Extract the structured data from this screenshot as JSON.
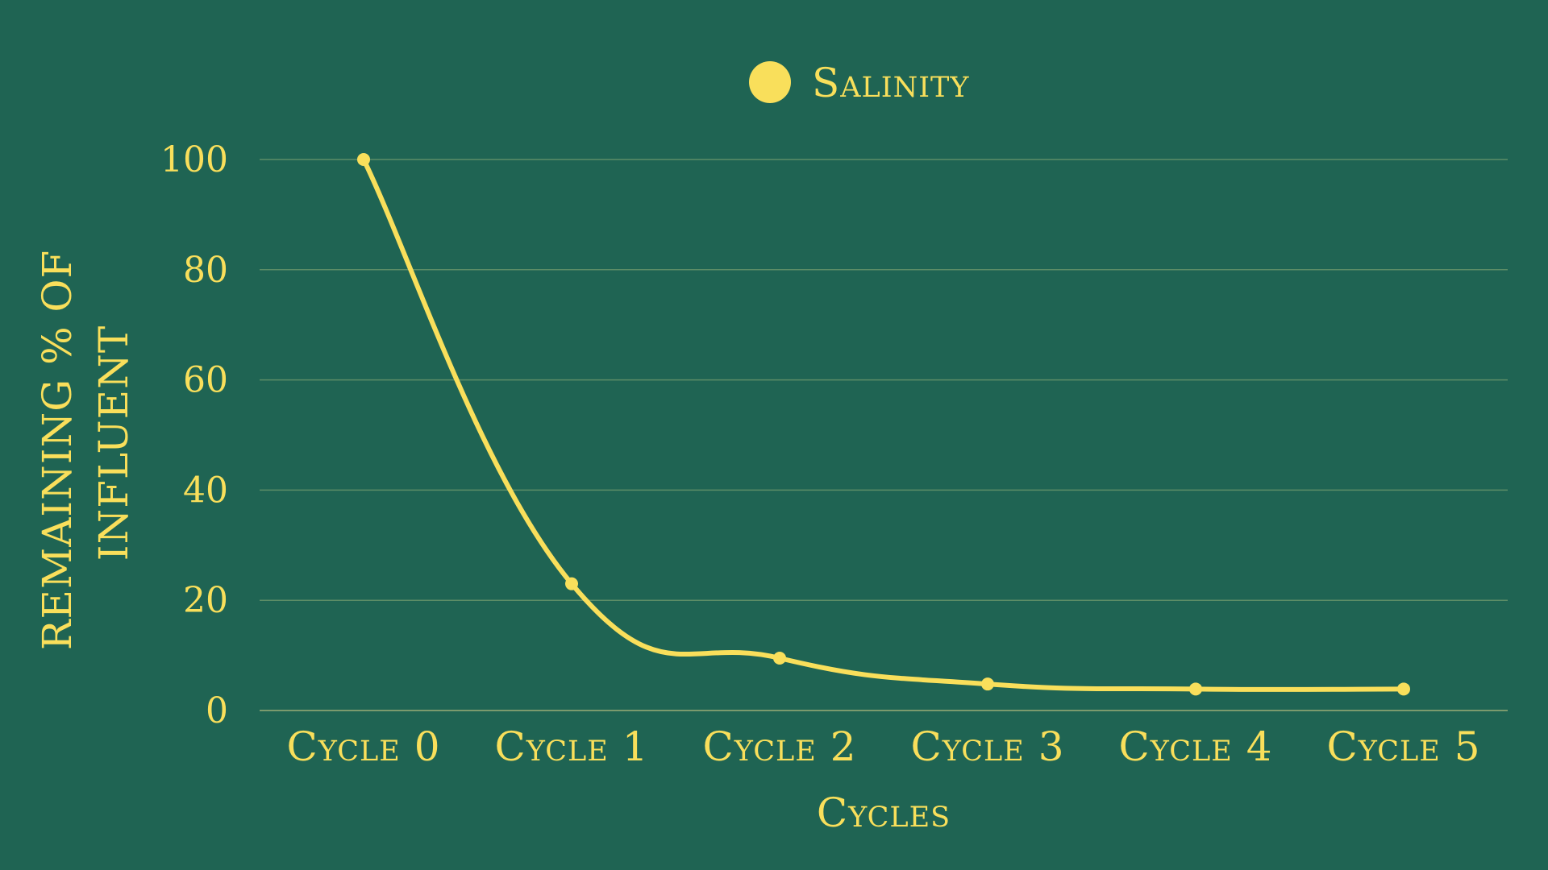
{
  "chart_data": {
    "type": "line",
    "title": "",
    "xlabel": "Cycles",
    "ylabel": "REMAINING % OF INFLUENT",
    "ylabel_lines": [
      "REMAINING % OF",
      "INFLUENT"
    ],
    "categories": [
      "Cycle 0",
      "Cycle 1",
      "Cycle 2",
      "Cycle 3",
      "Cycle 4",
      "Cycle 5"
    ],
    "series": [
      {
        "name": "Salinity",
        "values": [
          100,
          23,
          9.5,
          4.8,
          3.9,
          3.9
        ]
      }
    ],
    "yticks": [
      "0",
      "20",
      "40",
      "60",
      "80",
      "100"
    ],
    "ylim": [
      0,
      100
    ],
    "grid": true,
    "legend": "top-center",
    "colors": {
      "background": "#1f6453",
      "series": "#f9df5b",
      "grid": "#5d8d67"
    }
  }
}
